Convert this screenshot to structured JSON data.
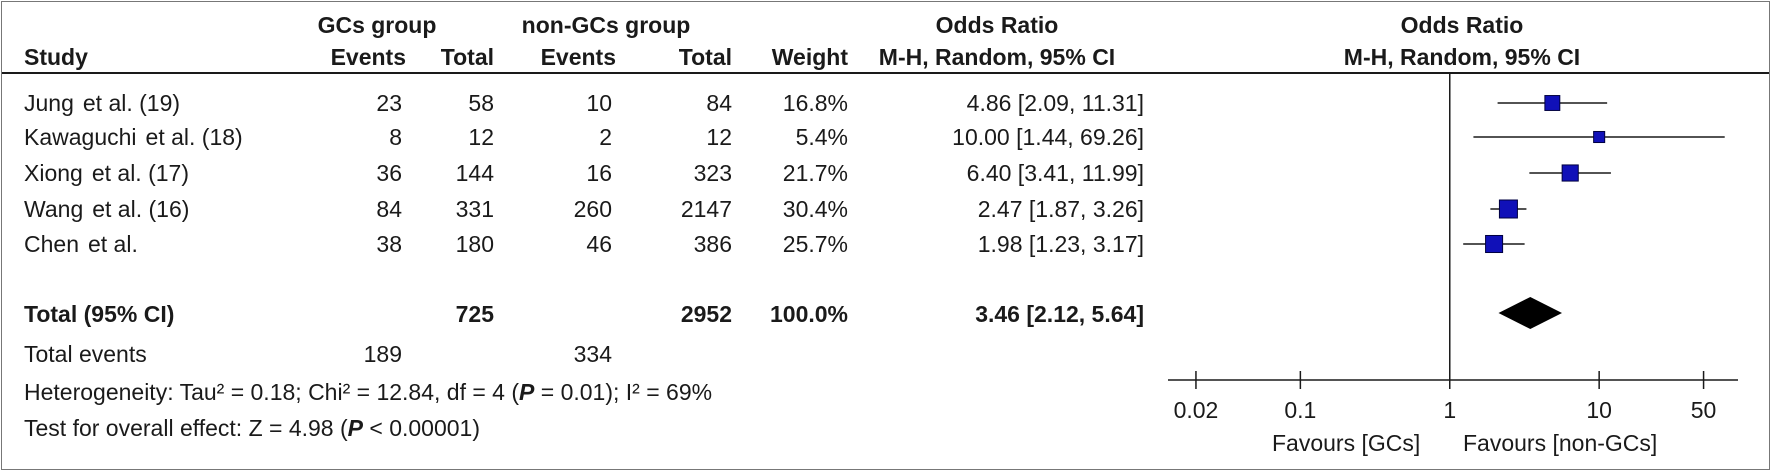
{
  "chart_data": {
    "type": "forest",
    "headers": {
      "group1": "GCs group",
      "group2": "non-GCs group",
      "or_left": "Odds Ratio",
      "or_left_sub": "M-H, Random, 95% CI",
      "or_right": "Odds Ratio",
      "or_right_sub": "M-H, Random, 95% CI",
      "study": "Study",
      "events1": "Events",
      "total1": "Total",
      "events2": "Events",
      "total2": "Total",
      "weight": "Weight"
    },
    "studies": [
      {
        "name": "Jung",
        "suffix": "et al. (19)",
        "events1": "23",
        "total1": "58",
        "events2": "10",
        "total2": "84",
        "weight": "16.8%",
        "ci_text": "4.86 [2.09, 11.31]",
        "or": 4.86,
        "lower": 2.09,
        "upper": 11.31,
        "weight_value": 16.8
      },
      {
        "name": "Kawaguchi",
        "suffix": "et al. (18)",
        "events1": "8",
        "total1": "12",
        "events2": "2",
        "total2": "12",
        "weight": "5.4%",
        "ci_text": "10.00 [1.44, 69.26]",
        "or": 10.0,
        "lower": 1.44,
        "upper": 69.26,
        "weight_value": 5.4
      },
      {
        "name": "Xiong",
        "suffix": "et al. (17)",
        "events1": "36",
        "total1": "144",
        "events2": "16",
        "total2": "323",
        "weight": "21.7%",
        "ci_text": "6.40 [3.41, 11.99]",
        "or": 6.4,
        "lower": 3.41,
        "upper": 11.99,
        "weight_value": 21.7
      },
      {
        "name": "Wang",
        "suffix": "et al. (16)",
        "events1": "84",
        "total1": "331",
        "events2": "260",
        "total2": "2147",
        "weight": "30.4%",
        "ci_text": "2.47 [1.87, 3.26]",
        "or": 2.47,
        "lower": 1.87,
        "upper": 3.26,
        "weight_value": 30.4
      },
      {
        "name": "Chen",
        "suffix": "et al.",
        "events1": "38",
        "total1": "180",
        "events2": "46",
        "total2": "386",
        "weight": "25.7%",
        "ci_text": "1.98 [1.23, 3.17]",
        "or": 1.98,
        "lower": 1.23,
        "upper": 3.17,
        "weight_value": 25.7
      }
    ],
    "total": {
      "label": "Total (95% CI)",
      "total1": "725",
      "total2": "2952",
      "weight": "100.0%",
      "ci_text": "3.46 [2.12, 5.64]",
      "or": 3.46,
      "lower": 2.12,
      "upper": 5.64
    },
    "total_events": {
      "label": "Total events",
      "events1": "189",
      "events2": "334"
    },
    "heterogeneity": {
      "pre": "Heterogeneity: Tau² = 0.18; Chi² = 12.84, df = 4 (",
      "p": "P",
      "mid": " = 0.01); I² = 69%"
    },
    "overall_effect": {
      "pre": "Test for overall effect: Z = 4.98 (",
      "p": "P",
      "mid": " < 0.00001)"
    },
    "axis": {
      "scale": "log",
      "ticks": [
        0.02,
        0.1,
        1,
        10,
        50
      ],
      "tick_labels": [
        "0.02",
        "0.1",
        "1",
        "10",
        "50"
      ],
      "range": [
        0.013,
        85
      ]
    },
    "favours_left": "Favours [GCs]",
    "favours_right": "Favours [non-GCs]",
    "colors": {
      "marker": "#1010b8",
      "diamond": "#000000",
      "line": "#1a1a1a"
    }
  }
}
